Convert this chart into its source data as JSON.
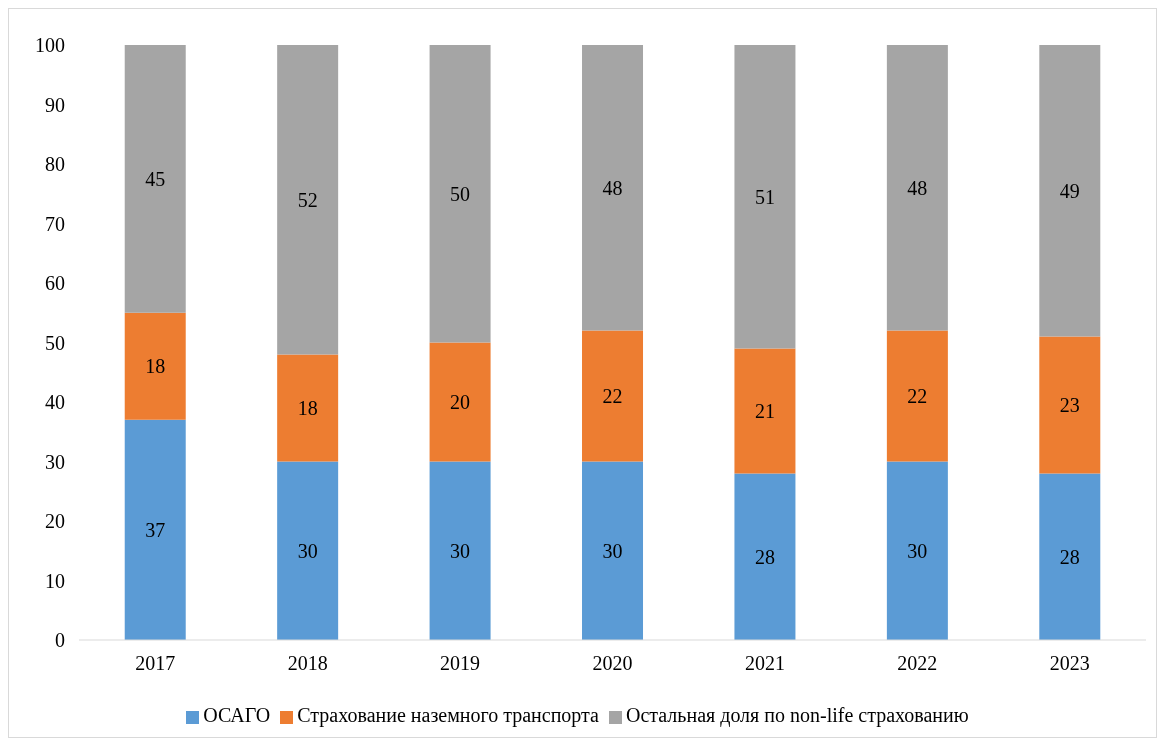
{
  "chart_data": {
    "type": "bar",
    "stacked": true,
    "categories": [
      "2017",
      "2018",
      "2019",
      "2020",
      "2021",
      "2022",
      "2023"
    ],
    "series": [
      {
        "name": "ОСАГО",
        "color": "#5b9bd5",
        "values": [
          37,
          30,
          30,
          30,
          28,
          30,
          28
        ]
      },
      {
        "name": "Страхование наземного транспорта",
        "color": "#ed7d31",
        "values": [
          18,
          18,
          20,
          22,
          21,
          22,
          23
        ]
      },
      {
        "name": "Остальная доля по non-life страхованию",
        "color": "#a5a5a5",
        "values": [
          45,
          52,
          50,
          48,
          51,
          48,
          49
        ]
      }
    ],
    "ylim": [
      0,
      100
    ],
    "yticks": [
      0,
      10,
      20,
      30,
      40,
      50,
      60,
      70,
      80,
      90,
      100
    ],
    "grid": false,
    "legend": "bottom",
    "data_labels": true
  }
}
